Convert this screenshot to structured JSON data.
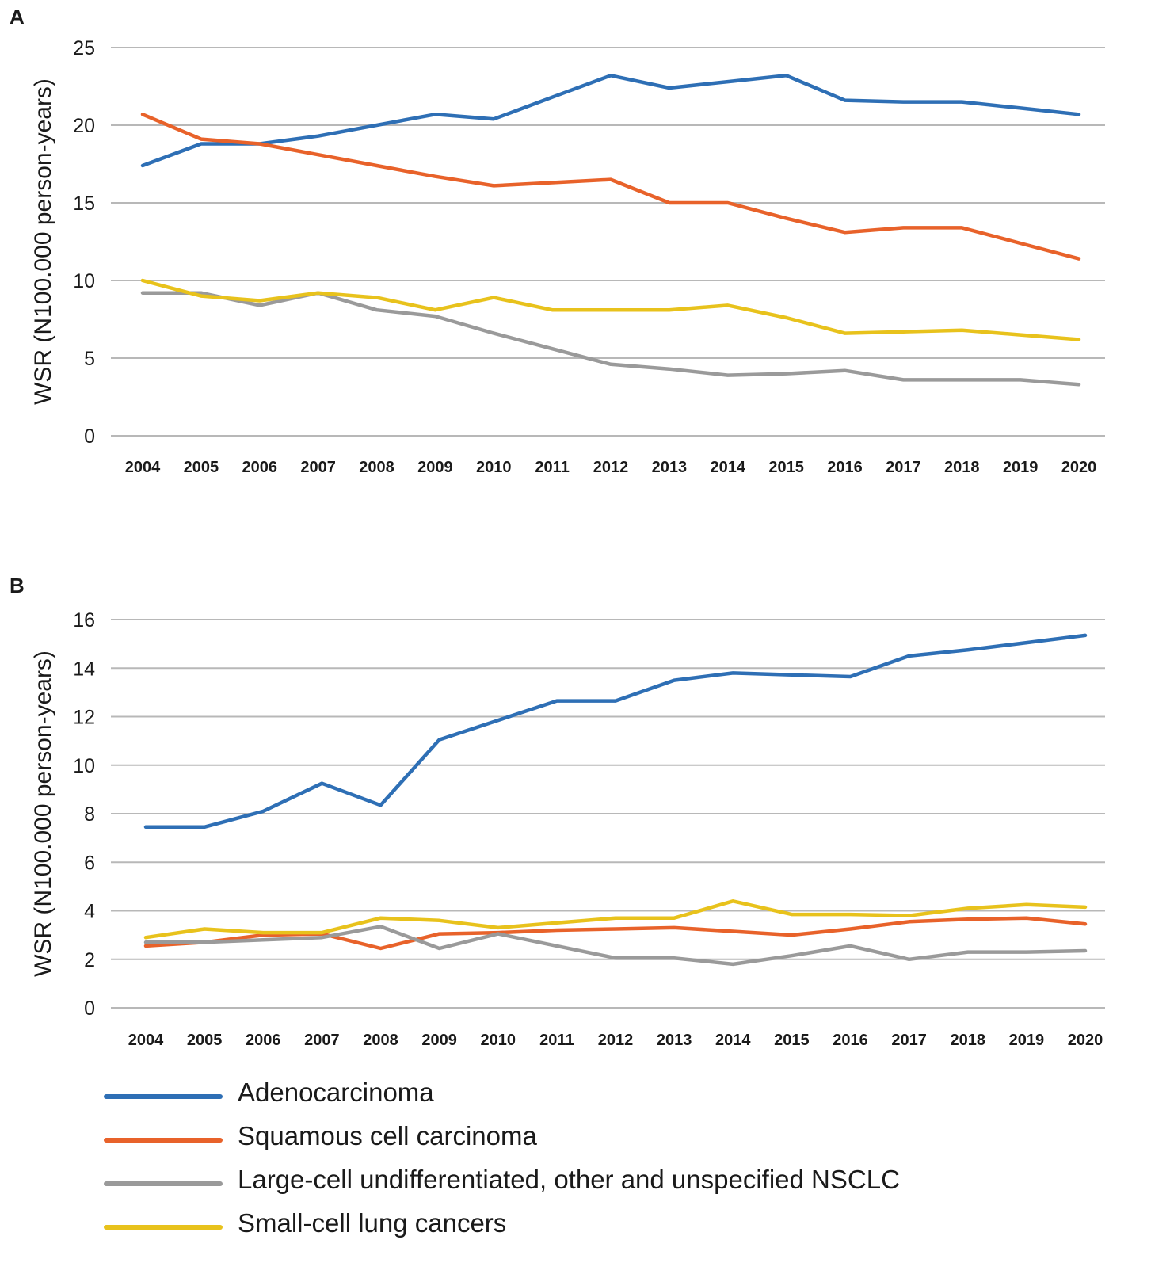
{
  "chart_data": [
    {
      "type": "line",
      "panel_label": "A",
      "title": "",
      "xlabel": "",
      "ylabel": "WSR (N100.000 person-years)",
      "ylim": [
        0,
        25
      ],
      "yticks": [
        "0",
        "5",
        "10",
        "15",
        "20",
        "25"
      ],
      "categories": [
        "2004",
        "2005",
        "2006",
        "2007",
        "2008",
        "2009",
        "2010",
        "2011",
        "2012",
        "2013",
        "2014",
        "2015",
        "2016",
        "2017",
        "2018",
        "2019",
        "2020"
      ],
      "grid": true,
      "series": [
        {
          "name": "Adenocarcinoma",
          "color": "#2e6fb5",
          "values": [
            17.4,
            18.8,
            18.8,
            19.3,
            20.0,
            20.7,
            20.4,
            21.8,
            23.2,
            22.4,
            22.8,
            23.2,
            21.6,
            21.5,
            21.5,
            21.1,
            20.7
          ]
        },
        {
          "name": "Squamous cell carcinoma",
          "color": "#e8622a",
          "values": [
            20.7,
            19.1,
            18.8,
            18.1,
            17.4,
            16.7,
            16.1,
            16.3,
            16.5,
            15.0,
            15.0,
            14.0,
            13.1,
            13.4,
            13.4,
            12.4,
            11.4
          ]
        },
        {
          "name": "Large-cell undifferentiated, other and unspecified NSCLC",
          "color": "#9a9a9a",
          "values": [
            9.2,
            9.2,
            8.4,
            9.2,
            8.1,
            7.7,
            6.6,
            5.6,
            4.6,
            4.3,
            3.9,
            4.0,
            4.2,
            3.6,
            3.6,
            3.6,
            3.3
          ]
        },
        {
          "name": "Small-cell lung cancers",
          "color": "#e8c21c",
          "values": [
            10.0,
            9.0,
            8.7,
            9.2,
            8.9,
            8.1,
            8.9,
            8.1,
            8.1,
            8.1,
            8.4,
            7.6,
            6.6,
            6.7,
            6.8,
            6.5,
            6.2
          ]
        }
      ]
    },
    {
      "type": "line",
      "panel_label": "B",
      "title": "",
      "xlabel": "",
      "ylabel": "WSR (N100.000 person-years)",
      "ylim": [
        0,
        16
      ],
      "yticks": [
        "0",
        "2",
        "4",
        "6",
        "8",
        "10",
        "12",
        "14",
        "16"
      ],
      "categories": [
        "2004",
        "2005",
        "2006",
        "2007",
        "2008",
        "2009",
        "2010",
        "2011",
        "2012",
        "2013",
        "2014",
        "2015",
        "2016",
        "2017",
        "2018",
        "2019",
        "2020"
      ],
      "grid": true,
      "series": [
        {
          "name": "Adenocarcinoma",
          "color": "#2e6fb5",
          "values": [
            7.45,
            7.45,
            8.1,
            9.25,
            8.35,
            11.05,
            11.85,
            12.65,
            12.65,
            13.5,
            13.8,
            13.72,
            13.65,
            14.5,
            14.75,
            15.05,
            15.35
          ]
        },
        {
          "name": "Squamous cell carcinoma",
          "color": "#e8622a",
          "values": [
            2.55,
            2.7,
            3.0,
            3.05,
            2.45,
            3.05,
            3.1,
            3.2,
            3.25,
            3.3,
            3.15,
            3.0,
            3.25,
            3.55,
            3.65,
            3.7,
            3.45
          ]
        },
        {
          "name": "Large-cell undifferentiated, other and unspecified NSCLC",
          "color": "#9a9a9a",
          "values": [
            2.7,
            2.7,
            2.8,
            2.9,
            3.35,
            2.45,
            3.05,
            2.55,
            2.05,
            2.05,
            1.8,
            2.15,
            2.55,
            2.0,
            2.3,
            2.3,
            2.35
          ]
        },
        {
          "name": "Small-cell lung cancers",
          "color": "#e8c21c",
          "values": [
            2.9,
            3.25,
            3.1,
            3.1,
            3.7,
            3.6,
            3.3,
            3.5,
            3.7,
            3.7,
            4.4,
            3.85,
            3.85,
            3.8,
            4.1,
            4.25,
            4.15
          ]
        }
      ]
    }
  ],
  "legend": {
    "items": [
      {
        "label": "Adenocarcinoma",
        "color": "#2e6fb5"
      },
      {
        "label": "Squamous cell carcinoma",
        "color": "#e8622a"
      },
      {
        "label": "Large-cell undifferentiated, other and unspecified NSCLC",
        "color": "#9a9a9a"
      },
      {
        "label": "Small-cell lung cancers",
        "color": "#e8c21c"
      }
    ]
  }
}
